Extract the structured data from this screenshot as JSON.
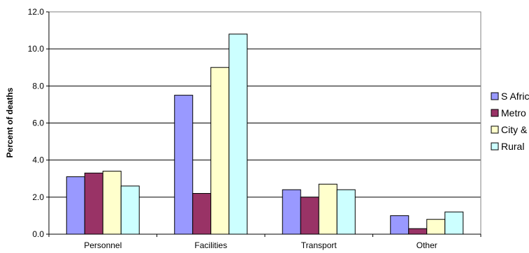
{
  "chart_data": {
    "type": "bar",
    "title": "",
    "xlabel": "",
    "ylabel": "Percent of deaths",
    "ylim": [
      0,
      12
    ],
    "yticks": [
      "0.0",
      "2.0",
      "4.0",
      "6.0",
      "8.0",
      "10.0",
      "12.0"
    ],
    "grid": true,
    "legend_position": "right",
    "categories": [
      "Personnel",
      "Facilities",
      "Transport",
      "Other"
    ],
    "series": [
      {
        "name": "S Africa",
        "color": "#9999ff",
        "values": [
          3.1,
          7.5,
          2.4,
          1.0
        ]
      },
      {
        "name": "Metro",
        "color": "#993366",
        "values": [
          3.3,
          2.2,
          2.0,
          0.3
        ]
      },
      {
        "name": "City & Town",
        "color": "#ffffcc",
        "values": [
          3.4,
          9.0,
          2.7,
          0.8
        ]
      },
      {
        "name": "Rural",
        "color": "#ccffff",
        "values": [
          2.6,
          10.8,
          2.4,
          1.2
        ]
      }
    ]
  }
}
